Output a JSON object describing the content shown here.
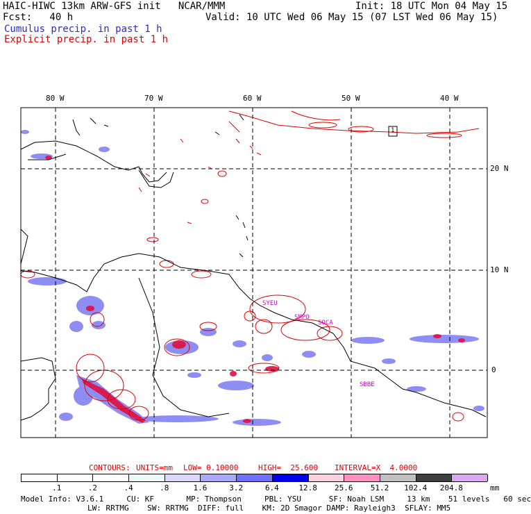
{
  "header": {
    "model_line": "HAIC-HIWC 13km ARW-GFS init   NCAR/MMM",
    "init_line": "Init: 18 UTC Mon 04 May 15",
    "fcst_line": "Fcst:   40 h",
    "valid_line": "Valid: 10 UTC Wed 06 May 15 (07 LST Wed 06 May 15)",
    "cumulus_legend": "Cumulus precip. in past 1 h",
    "explicit_legend": "Explicit precip. in past 1 h"
  },
  "map": {
    "lon_labels": [
      "80 W",
      "70 W",
      "60 W",
      "50 W",
      "40 W"
    ],
    "lat_labels": [
      "20 N",
      "10 N",
      "0"
    ],
    "box_label": "1",
    "station_labels": [
      "SYEU",
      "SMPO",
      "SOCA",
      "SBBE"
    ],
    "colors": {
      "cumulus": "#6a6af0",
      "explicit": "#e00000",
      "stations": "#cc00cc"
    }
  },
  "contour_info": {
    "contours": "CONTOURS:",
    "units": "UNITS=mm",
    "low": "LOW= 0.10000",
    "high": "HIGH=  25.600",
    "interval": "INTERVAL=X  4.0000"
  },
  "colorbar": {
    "units": "mm",
    "labels": [
      ".1",
      ".2",
      ".4",
      ".8",
      "1.6",
      "3.2",
      "6.4",
      "12.8",
      "25.6",
      "51.2",
      "102.4",
      "204.8"
    ],
    "colors": [
      "#ffffff",
      "#ffffff",
      "#ffffff",
      "#eefafa",
      "#d8d8ff",
      "#a8a8ff",
      "#7070ff",
      "#0000ee",
      "#ffd0e0",
      "#ff90c0",
      "#c0c0c0",
      "#404040",
      "#d8a8f0"
    ]
  },
  "footer": {
    "line1": "Model Info: V3.6.1     CU: KF       MP: Thompson     PBL: YSU      SF: Noah LSM     13 km    51 levels   60 sec",
    "line2": "LW: RRTMG    SW: RRTMG  DIFF: full    KM: 2D Smagor DAMP: Rayleigh3  SFLAY: MM5"
  }
}
